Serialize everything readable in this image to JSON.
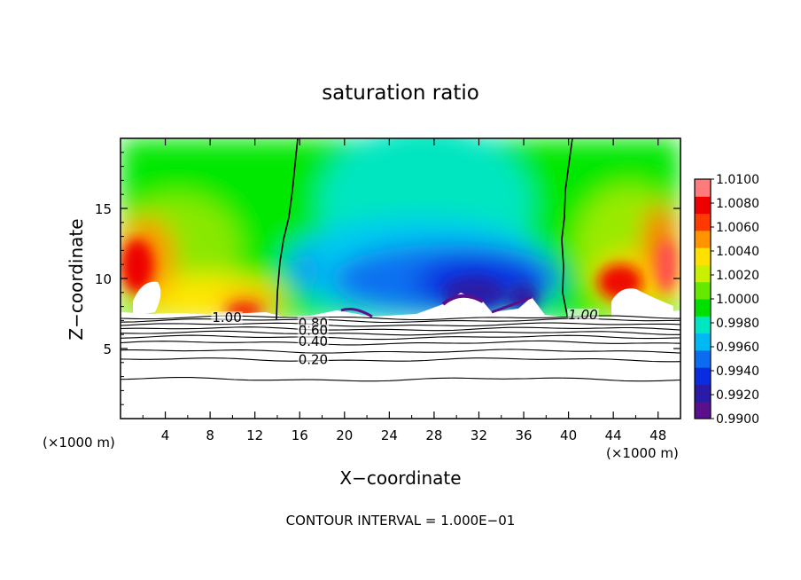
{
  "chart_data": {
    "type": "heatmap",
    "title": "saturation ratio",
    "xlabel": "X−coordinate",
    "ylabel": "Z−coordinate",
    "x_unit_left": "(×1000 m)",
    "x_unit_right": "(×1000 m)",
    "footer": "CONTOUR INTERVAL = 1.000E−01",
    "xlim": [
      0,
      50
    ],
    "ylim": [
      0,
      20
    ],
    "x_ticks": [
      4,
      8,
      12,
      16,
      20,
      24,
      28,
      32,
      36,
      40,
      44,
      48
    ],
    "x_tick_labels": [
      "4",
      "8",
      "12",
      "16",
      "20",
      "24",
      "28",
      "32",
      "36",
      "40",
      "44",
      "48"
    ],
    "y_ticks": [
      5,
      10,
      15
    ],
    "y_tick_labels": [
      "5",
      "10",
      "15"
    ],
    "colorbar": {
      "min": 0.99,
      "max": 1.01,
      "tick_labels": [
        "1.0100",
        "1.0080",
        "1.0060",
        "1.0040",
        "1.0020",
        "1.0000",
        "0.9980",
        "0.9960",
        "0.9940",
        "0.9920",
        "0.9900"
      ],
      "colors": [
        "#5a0f8c",
        "#2a1aa8",
        "#0a2ce0",
        "#0a6cf0",
        "#00b8f4",
        "#00e6c0",
        "#00e000",
        "#66e800",
        "#c8f000",
        "#ffe000",
        "#ff9400",
        "#ff3a00",
        "#ee0000",
        "#ff7a7a"
      ]
    },
    "shaded_region": {
      "z_bottom": 7.0,
      "z_top": 20,
      "note": "values above 1.01 or below 0.99 are unshaded"
    },
    "contour_labels": [
      {
        "text": "1.00",
        "x": 9.5,
        "z": 7.2
      },
      {
        "text": "1.00",
        "x": 41.3,
        "z": 7.4
      },
      {
        "text": "0.80",
        "x": 17.2,
        "z": 6.8
      },
      {
        "text": "0.60",
        "x": 17.2,
        "z": 6.3
      },
      {
        "text": "0.40",
        "x": 17.2,
        "z": 5.5
      },
      {
        "text": "0.20",
        "x": 17.2,
        "z": 4.2
      }
    ],
    "contour_levels_z": [
      7.2,
      7.0,
      6.7,
      6.4,
      6.1,
      5.8,
      5.4,
      4.8,
      4.2,
      2.8
    ]
  }
}
